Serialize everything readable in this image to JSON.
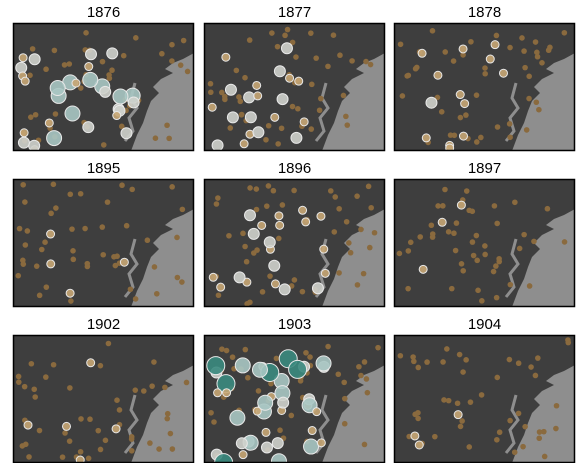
{
  "panels": [
    {
      "title": "1876"
    },
    {
      "title": "1877"
    },
    {
      "title": "1878"
    },
    {
      "title": "1895"
    },
    {
      "title": "1896"
    },
    {
      "title": "1897"
    },
    {
      "title": "1902"
    },
    {
      "title": "1903"
    },
    {
      "title": "1904"
    }
  ]
}
